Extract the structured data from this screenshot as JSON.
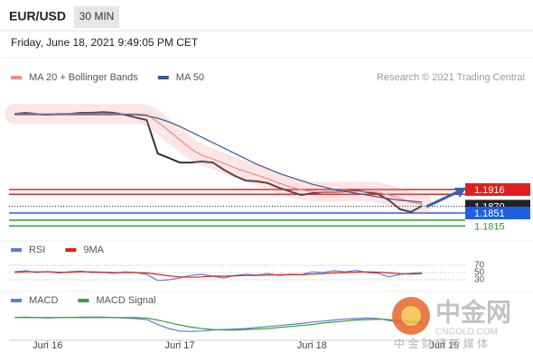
{
  "header": {
    "symbol": "EUR/USD",
    "timeframe": "30 MIN",
    "timestamp": "Friday, June 18, 2021 9:49:05 PM CET"
  },
  "chart_data": [
    {
      "type": "line",
      "credit": "Research © 2021 Trading Central",
      "x": [
        -6,
        -4,
        -2,
        0,
        2,
        4,
        6,
        8,
        10,
        12,
        14,
        16,
        18,
        20,
        22,
        24,
        26,
        28,
        30,
        32,
        34,
        36,
        38,
        40,
        42,
        44,
        46,
        48,
        50,
        52,
        54,
        56,
        58,
        60,
        62,
        64,
        66,
        68
      ],
      "xlim": [
        -7,
        75
      ],
      "ylim": [
        1.1786,
        1.2204
      ],
      "series": [
        {
          "color": "#333333",
          "values": [
            1.2126,
            1.2129,
            1.2126,
            1.2124,
            1.2126,
            1.2126,
            1.2129,
            1.2129,
            1.2131,
            1.2129,
            1.2124,
            1.2116,
            1.2109,
            1.2016,
            1.2004,
            1.1991,
            1.1991,
            1.1994,
            1.1991,
            1.1971,
            1.1954,
            1.1941,
            1.1939,
            1.1934,
            1.1921,
            1.1911,
            1.1901,
            1.1906,
            1.1909,
            1.1909,
            1.1911,
            1.1914,
            1.1909,
            1.1904,
            1.1886,
            1.1861,
            1.1854,
            1.1871
          ]
        },
        {
          "name": "MA 20 + Bollinger Bands",
          "color": "#f08a8a",
          "values": [
            1.2126,
            1.2126,
            1.2126,
            1.2126,
            1.2126,
            1.2126,
            1.2126,
            1.2126,
            1.2126,
            1.2126,
            1.2126,
            1.2126,
            1.2124,
            1.2104,
            1.2079,
            1.2054,
            1.2029,
            1.2011,
            1.2001,
            1.1989,
            1.1976,
            1.1966,
            1.1956,
            1.1946,
            1.1934,
            1.1924,
            1.1916,
            1.1911,
            1.1909,
            1.1909,
            1.1911,
            1.1911,
            1.1911,
            1.1909,
            1.1901,
            1.1891,
            1.1881,
            1.1876
          ]
        },
        {
          "name": "MA 50",
          "color": "#3a5a98",
          "values": [
            1.2124,
            1.2124,
            1.2124,
            1.2124,
            1.2124,
            1.2124,
            1.2124,
            1.2124,
            1.2124,
            1.2124,
            1.2124,
            1.2124,
            1.2121,
            1.2114,
            1.2104,
            1.2091,
            1.2076,
            1.2061,
            1.2046,
            1.2031,
            1.2016,
            1.2001,
            1.1986,
            1.1974,
            1.1961,
            1.1951,
            1.1941,
            1.1931,
            1.1924,
            1.1916,
            1.1911,
            1.1906,
            1.1901,
            1.1896,
            1.1891,
            1.1886,
            1.1884,
            1.1881
          ]
        }
      ],
      "levels": [
        {
          "value": 1.1903,
          "color": "#e02020"
        },
        {
          "value": 1.1916,
          "color": "#e02020",
          "box": true
        },
        {
          "value": 1.187,
          "label": "1.1870",
          "color": "#222222",
          "box": true
        },
        {
          "value": 1.1851,
          "color": "#2060e0",
          "box": true
        },
        {
          "value": 1.1831,
          "color": "#2e9a2e"
        },
        {
          "value": 1.1815,
          "color": "#2e9a2e",
          "box": false
        }
      ]
    },
    {
      "type": "line",
      "x": [
        -6,
        -4,
        -2,
        0,
        2,
        4,
        6,
        8,
        10,
        12,
        14,
        16,
        18,
        20,
        22,
        24,
        26,
        28,
        30,
        32,
        34,
        36,
        38,
        40,
        42,
        44,
        46,
        48,
        50,
        52,
        54,
        56,
        58,
        60,
        62,
        64,
        66,
        68
      ],
      "xlim": [
        -7,
        75
      ],
      "ylim": [
        10,
        90
      ],
      "yticks": [
        30,
        50,
        70
      ],
      "series": [
        {
          "name": "RSI",
          "color": "#5b7fd6",
          "values": [
            52,
            55,
            50,
            53,
            49,
            52,
            54,
            50,
            51,
            48,
            52,
            50,
            45,
            28,
            30,
            35,
            42,
            45,
            40,
            35,
            42,
            45,
            43,
            47,
            42,
            45,
            44,
            52,
            50,
            55,
            52,
            56,
            50,
            48,
            38,
            45,
            48,
            50
          ]
        },
        {
          "name": "9MA",
          "color": "#e02020",
          "values": [
            51,
            52,
            52,
            52,
            51,
            51,
            52,
            52,
            51,
            50,
            50,
            50,
            49,
            45,
            41,
            38,
            37,
            38,
            40,
            40,
            41,
            42,
            42,
            43,
            44,
            44,
            44,
            46,
            47,
            49,
            50,
            51,
            52,
            51,
            49,
            47,
            46,
            47
          ]
        }
      ]
    },
    {
      "type": "line",
      "x": [
        -6,
        -4,
        -2,
        0,
        2,
        4,
        6,
        8,
        10,
        12,
        14,
        16,
        18,
        20,
        22,
        24,
        26,
        28,
        30,
        32,
        34,
        36,
        38,
        40,
        42,
        44,
        46,
        48,
        50,
        52,
        54,
        56,
        58,
        60,
        62,
        64,
        66,
        68
      ],
      "xlim": [
        -7,
        75
      ],
      "ylim": [
        -0.004,
        0.002
      ],
      "xticks": [
        {
          "value": 0,
          "label": "Jun 16"
        },
        {
          "value": 24,
          "label": "Jun 17"
        },
        {
          "value": 48,
          "label": "Jun 18"
        },
        {
          "value": 72,
          "label": "Jun 19"
        }
      ],
      "series": [
        {
          "name": "MACD",
          "color": "#5b7fd6",
          "values": [
            0.0002,
            0.0003,
            0.0002,
            0.0001,
            0.0002,
            0.0002,
            0.0003,
            0.0003,
            0.0003,
            0.0002,
            0.0001,
            0,
            -0.0002,
            -0.0012,
            -0.002,
            -0.0025,
            -0.0026,
            -0.0025,
            -0.0023,
            -0.0022,
            -0.0021,
            -0.002,
            -0.0018,
            -0.0016,
            -0.0014,
            -0.0012,
            -0.001,
            -0.0007,
            -0.0005,
            -0.0003,
            -0.0001,
            0,
            0.0001,
            0,
            -0.0004,
            -0.0008,
            -0.0009,
            -0.0008
          ]
        },
        {
          "name": "MACD Signal",
          "color": "#3aa03a",
          "values": [
            0.0002,
            0.0002,
            0.0002,
            0.0002,
            0.0002,
            0.0002,
            0.0002,
            0.0002,
            0.0002,
            0.0002,
            0.0002,
            0.0002,
            0.0001,
            -0.0003,
            -0.0008,
            -0.0013,
            -0.0017,
            -0.002,
            -0.0022,
            -0.0023,
            -0.0023,
            -0.0022,
            -0.0021,
            -0.002,
            -0.0018,
            -0.0016,
            -0.0014,
            -0.0012,
            -0.0009,
            -0.0007,
            -0.0005,
            -0.0003,
            -0.0002,
            -0.0001,
            -0.0002,
            -0.0004,
            -0.0005,
            -0.0006
          ]
        }
      ]
    }
  ],
  "watermark": {
    "title": "中金网",
    "url": "CNGOLD.COM",
    "tagline": "中 金 财 经 新 媒 体"
  }
}
